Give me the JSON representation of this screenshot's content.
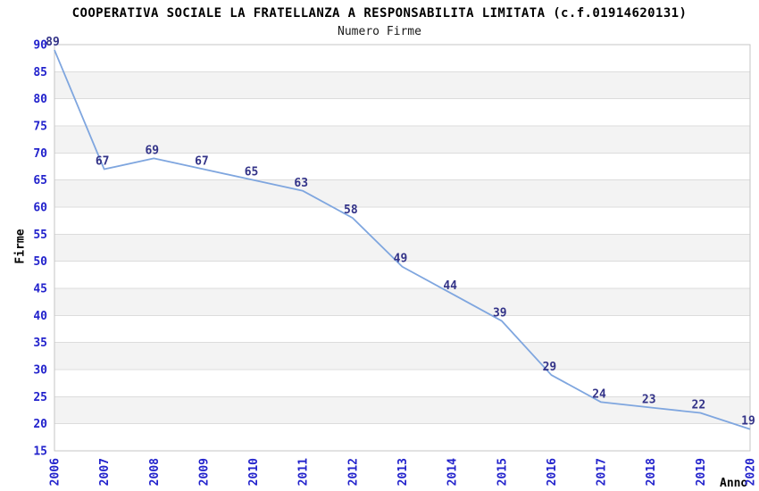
{
  "chart_data": {
    "type": "line",
    "title": "COOPERATIVA SOCIALE LA FRATELLANZA A RESPONSABILITA LIMITATA (c.f.01914620131)",
    "subtitle": "Numero Firme",
    "xlabel": "Anno",
    "ylabel": "Firme",
    "categories": [
      "2006",
      "2007",
      "2008",
      "2009",
      "2010",
      "2011",
      "2012",
      "2013",
      "2014",
      "2015",
      "2016",
      "2017",
      "2018",
      "2019",
      "2020"
    ],
    "values": [
      89,
      67,
      69,
      67,
      65,
      63,
      58,
      49,
      44,
      39,
      29,
      24,
      23,
      22,
      19
    ],
    "ylim": [
      15,
      90
    ],
    "ytick_step": 5,
    "legend": "none",
    "grid": "horizontal gridlines every 5 units with alternating gray bands",
    "point_labels_visible": true,
    "colors": {
      "line": "#7fa6df",
      "tick_label": "#2222cc",
      "data_label": "#333388",
      "band": "#f3f3f3",
      "gridline": "#dcdcdc",
      "plot_border": "#c6c6c6",
      "title": "#000000"
    }
  }
}
